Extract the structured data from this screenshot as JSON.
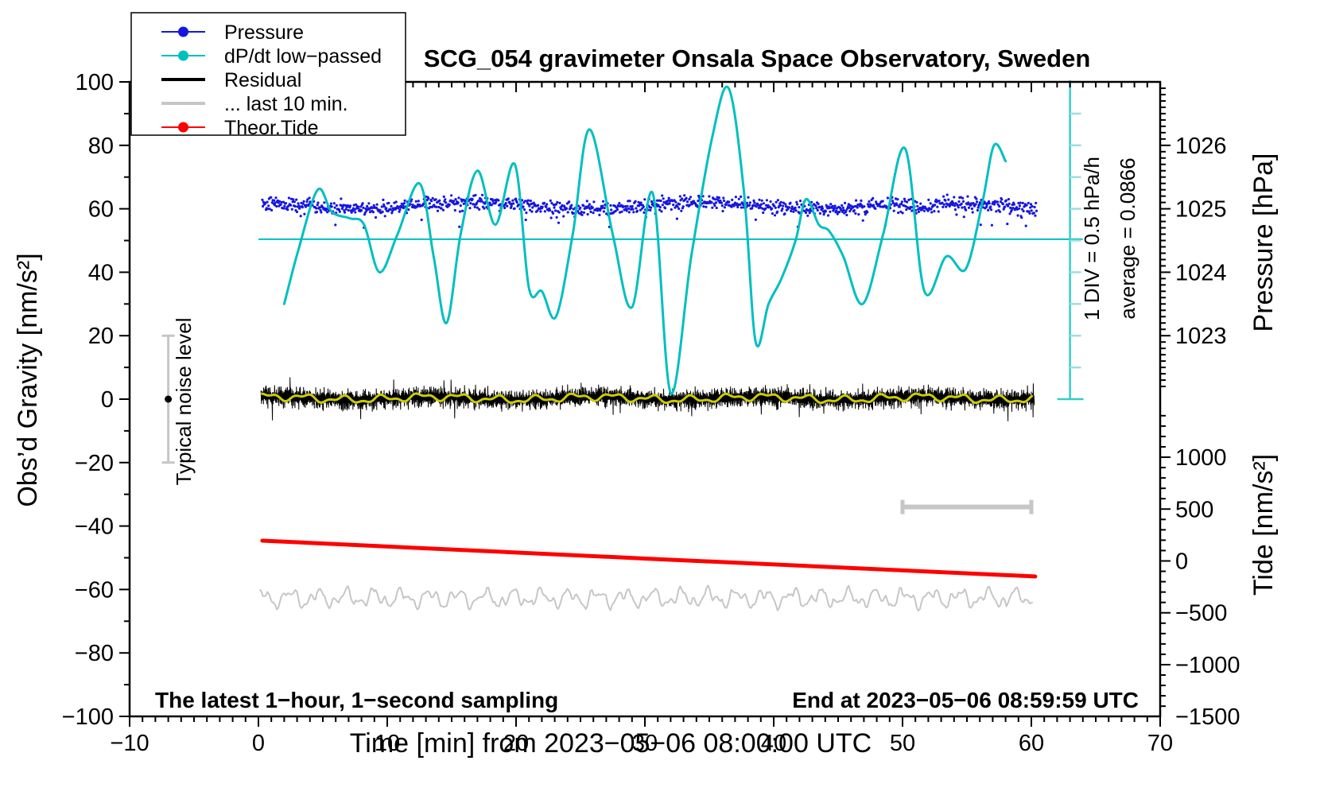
{
  "chart_data": {
    "type": "line",
    "title": "SCG_054 gravimeter Onsala Space Observatory, Sweden",
    "xlabel": "Time [min] from 2023−05−06 08:00:00 UTC",
    "ylabel_left": "Obs’d Gravity [nm/s²]",
    "ylabel_right_pressure": "Pressure [hPa]",
    "ylabel_right_tide": "Tide [nm/s²]",
    "x_axis": {
      "min": -10,
      "max": 70,
      "major_ticks": [
        -10,
        0,
        10,
        20,
        30,
        40,
        50,
        60,
        70
      ],
      "minor_step": 1
    },
    "gravity_axis": {
      "min": -100,
      "max": 100,
      "major_ticks": [
        100,
        80,
        60,
        40,
        20,
        0,
        -20,
        -40,
        -60,
        -80,
        -100
      ],
      "minor_step": 10
    },
    "pressure_axis": {
      "major_ticks": [
        1026,
        1025,
        1024,
        1023
      ],
      "minor_step": 0.1,
      "gravity_at_1025hPa": 60,
      "gravity_units_per_hPa": 20
    },
    "tide_axis": {
      "major_ticks": [
        1000,
        500,
        0,
        -500,
        -1000,
        -1500
      ],
      "minor_step": 100,
      "gravity_at_tide0": -51,
      "gravity_units_per_tide_unit": 0.0327
    },
    "series": {
      "pressure": {
        "name": "Pressure",
        "color": "#1616e0",
        "t_start": 0.3,
        "t_end": 60.4,
        "n_points": 1250,
        "mean_gravity": 61.0,
        "noise_sd_gravity": 1.1,
        "slow_amp": 1.1,
        "dip_t": 51.5,
        "dip_depth": 1.8,
        "outlier_fraction": 0.025,
        "dot_radius": 1.6
      },
      "dpdt": {
        "name": "dP/dt low−passed",
        "color": "#00bfbf",
        "zero_line_gravity": 50.4,
        "zero_line_t_start": 0,
        "points_t_g": [
          [
            2.0,
            30
          ],
          [
            3.1,
            47
          ],
          [
            4.6,
            66
          ],
          [
            5.7,
            59
          ],
          [
            7.1,
            57
          ],
          [
            8.2,
            55
          ],
          [
            9.4,
            40
          ],
          [
            10.8,
            52
          ],
          [
            12.5,
            68
          ],
          [
            13.6,
            45
          ],
          [
            14.6,
            24
          ],
          [
            15.7,
            52
          ],
          [
            17.0,
            72
          ],
          [
            18.4,
            55
          ],
          [
            19.9,
            74
          ],
          [
            21.0,
            35
          ],
          [
            22.0,
            34
          ],
          [
            23.1,
            26
          ],
          [
            24.4,
            52
          ],
          [
            25.7,
            85
          ],
          [
            27.5,
            52
          ],
          [
            29.0,
            29
          ],
          [
            30.6,
            65
          ],
          [
            32.0,
            2
          ],
          [
            33.6,
            45
          ],
          [
            35.2,
            82
          ],
          [
            36.5,
            98
          ],
          [
            37.7,
            65
          ],
          [
            38.6,
            18
          ],
          [
            39.6,
            30
          ],
          [
            40.6,
            38
          ],
          [
            41.7,
            50
          ],
          [
            42.5,
            63
          ],
          [
            43.5,
            55
          ],
          [
            44.3,
            53
          ],
          [
            45.4,
            45
          ],
          [
            46.9,
            30
          ],
          [
            48.5,
            52
          ],
          [
            50.2,
            79
          ],
          [
            51.7,
            34
          ],
          [
            53.4,
            45
          ],
          [
            54.9,
            41
          ],
          [
            56.2,
            62
          ],
          [
            57.1,
            80
          ],
          [
            58.0,
            75
          ]
        ]
      },
      "residual": {
        "name": "Residual",
        "color": "#000000",
        "t_start": 0.2,
        "t_end": 60.2,
        "center_gravity": 0.3,
        "spike_typical": 2.6,
        "spike_max": 9
      },
      "residual_smooth": {
        "name": "residual smoothed",
        "color": "#cccc00",
        "t_start": 0.2,
        "t_end": 60.2,
        "center_gravity": 0.3,
        "amp_gravity": 1.4
      },
      "last10": {
        "name": "... last 10 min.",
        "color": "#c6c6c6",
        "t_start": 0.1,
        "t_end": 60.1,
        "center_gravity": -62.7,
        "amp_gravity": 2.9
      },
      "tide": {
        "name": "Theor.Tide",
        "color": "#ff0000",
        "points_t_g": [
          [
            0.3,
            -44.6
          ],
          [
            30.3,
            -50.3
          ],
          [
            60.3,
            -55.9
          ]
        ]
      }
    },
    "legend": {
      "entries": [
        {
          "label": "Pressure",
          "color": "#1616e0",
          "marker": "dot-line"
        },
        {
          "label": "dP/dt low−passed",
          "color": "#00bfbf",
          "marker": "dot-line"
        },
        {
          "label": "Residual",
          "color": "#000000",
          "marker": "thick-line"
        },
        {
          "label": "... last 10 min.",
          "color": "#c6c6c6",
          "marker": "thick-line"
        },
        {
          "label": "Theor.Tide",
          "color": "#ff0000",
          "marker": "dot-line"
        }
      ]
    },
    "annotations": {
      "noise_bar": {
        "label": "Typical noise level",
        "t": -7.0,
        "g_min": -20,
        "g_max": 20,
        "dot_g": 0,
        "color": "#c6c6c6"
      },
      "div_label": "1 DIV = 0.5 hPa/h",
      "average_label": "average = 0.0866",
      "scale_bar": {
        "t": 63.0,
        "g_min": 0,
        "g_max": 100,
        "divisions": 10,
        "color": "#33cccc",
        "tick_color": "#99e0e0"
      },
      "last10_bracket": {
        "t_min": 50,
        "t_max": 60,
        "gravity": -34,
        "color": "#c6c6c6"
      },
      "footer_left": "The latest 1−hour, 1−second sampling",
      "footer_right": "End at 2023−05−06 08:59:59 UTC"
    }
  }
}
